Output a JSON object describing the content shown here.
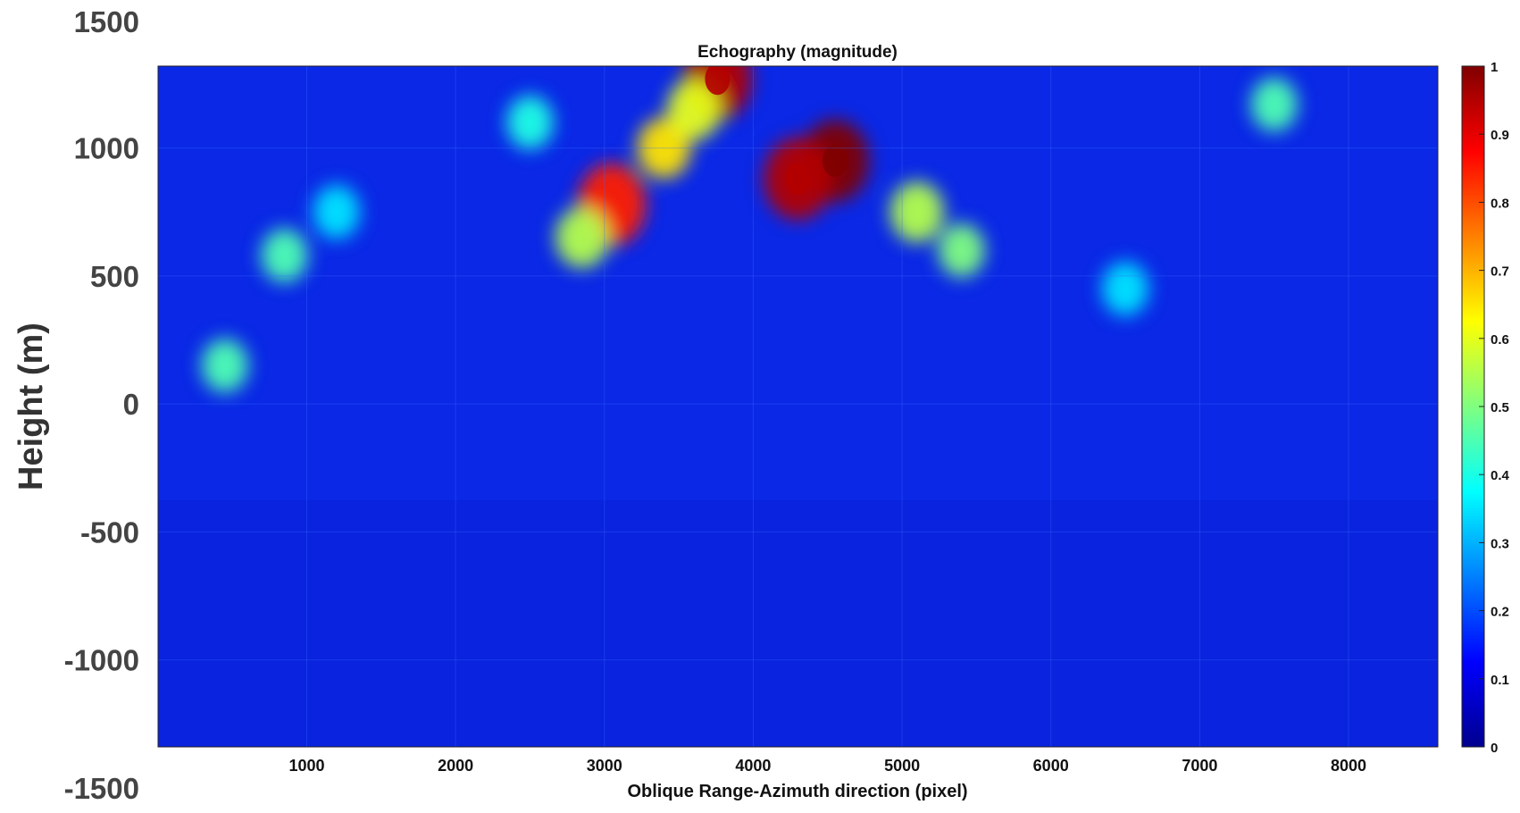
{
  "chart_data": {
    "type": "heatmap",
    "title": "Echography (magnitude)",
    "xlabel": "Oblique Range-Azimuth direction (pixel)",
    "ylabel": "Height (m)",
    "xlim": [
      1,
      8600
    ],
    "ylim": [
      -1340,
      1320
    ],
    "x_ticks": [
      "1000",
      "2000",
      "3000",
      "4000",
      "5000",
      "6000",
      "7000",
      "8000"
    ],
    "x_tick_values": [
      1000,
      2000,
      3000,
      4000,
      5000,
      6000,
      7000,
      8000
    ],
    "y_ticks": [
      "1500",
      "1000",
      "500",
      "0",
      "-500",
      "-1000",
      "-1500"
    ],
    "y_tick_values": [
      1500,
      1000,
      500,
      0,
      -500,
      -1000,
      -1500
    ],
    "colorbar": {
      "range": [
        0,
        1
      ],
      "ticks": [
        "0",
        "0.1",
        "0.2",
        "0.3",
        "0.4",
        "0.5",
        "0.6",
        "0.7",
        "0.8",
        "0.9",
        "1"
      ],
      "colormap": "jet"
    },
    "grid": true,
    "background_level": 0.17,
    "features": [
      {
        "x": 4550,
        "y": 950,
        "value": 1.0
      },
      {
        "x": 4300,
        "y": 880,
        "value": 0.95
      },
      {
        "x": 3760,
        "y": 1270,
        "value": 0.95
      },
      {
        "x": 3050,
        "y": 780,
        "value": 0.85
      },
      {
        "x": 3400,
        "y": 1000,
        "value": 0.65
      },
      {
        "x": 3600,
        "y": 1150,
        "value": 0.6
      },
      {
        "x": 5100,
        "y": 750,
        "value": 0.55
      },
      {
        "x": 5400,
        "y": 600,
        "value": 0.5
      },
      {
        "x": 2850,
        "y": 650,
        "value": 0.55
      },
      {
        "x": 7500,
        "y": 1170,
        "value": 0.45
      },
      {
        "x": 850,
        "y": 580,
        "value": 0.45
      },
      {
        "x": 450,
        "y": 150,
        "value": 0.45
      },
      {
        "x": 2500,
        "y": 1100,
        "value": 0.4
      },
      {
        "x": 1200,
        "y": 750,
        "value": 0.35
      },
      {
        "x": 6500,
        "y": 450,
        "value": 0.35
      }
    ]
  }
}
